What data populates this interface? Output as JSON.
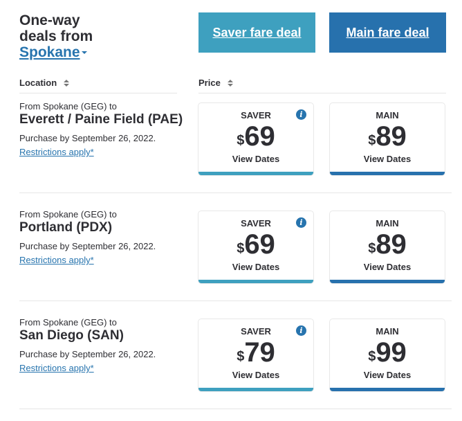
{
  "header": {
    "title_line1": "One-way",
    "title_line2": "deals from",
    "city": "Spokane"
  },
  "buttons": {
    "saver": "Saver fare deal",
    "main": "Main fare deal"
  },
  "columns": {
    "location": "Location",
    "price": "Price"
  },
  "colors": {
    "saver": "#3ea0bf",
    "main": "#2771ad",
    "link": "#2774ae"
  },
  "card_labels": {
    "saver": "SAVER",
    "main": "MAIN",
    "view": "View Dates",
    "currency": "$"
  },
  "deals": [
    {
      "from": "From Spokane (GEG) to",
      "dest": "Everett / Paine Field (PAE)",
      "purchase": "Purchase by September 26, 2022.",
      "restrictions": "Restrictions apply*",
      "saver": "69",
      "main": "89"
    },
    {
      "from": "From Spokane (GEG) to",
      "dest": "Portland (PDX)",
      "purchase": "Purchase by September 26, 2022.",
      "restrictions": "Restrictions apply*",
      "saver": "69",
      "main": "89"
    },
    {
      "from": "From Spokane (GEG) to",
      "dest": "San Diego (SAN)",
      "purchase": "Purchase by September 26, 2022.",
      "restrictions": "Restrictions apply*",
      "saver": "79",
      "main": "99"
    }
  ]
}
